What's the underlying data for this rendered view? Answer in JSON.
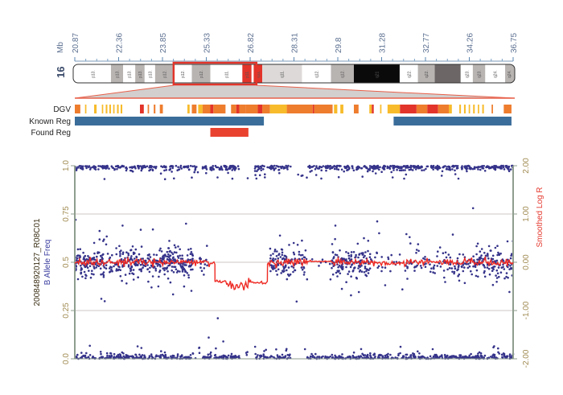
{
  "chart_data": {
    "type": "scatter",
    "title": "",
    "chromosome": "16",
    "mb_unit_label": "Mb",
    "x_range_mb": [
      20.87,
      36.75
    ],
    "top_tick_labels": [
      "20.87",
      "22.36",
      "23.85",
      "25.33",
      "26.82",
      "28.31",
      "29.8",
      "31.28",
      "32.77",
      "34.26",
      "36.75"
    ],
    "sample_id": "200848920127_R08C01",
    "left_axis": {
      "label": "B Allele Freq",
      "range": [
        0,
        1
      ],
      "ticks": [
        "0.0",
        "0.25",
        "0.5",
        "0.75",
        "1.0"
      ],
      "tick_values": [
        0,
        0.25,
        0.5,
        0.75,
        1.0
      ]
    },
    "right_axis": {
      "label": "Smoothed Log R",
      "range": [
        -2,
        2
      ],
      "ticks": [
        "-2.00",
        "-1.00",
        "0.00",
        "1.00",
        "2.00"
      ],
      "tick_values": [
        -2,
        -1,
        0,
        1,
        2
      ]
    },
    "grid": true,
    "ideogram_bands": [
      {
        "label": "p13.",
        "start": 20.87,
        "end": 22.18,
        "stain": "white"
      },
      {
        "label": "p13.",
        "start": 22.18,
        "end": 22.62,
        "stain": "gray"
      },
      {
        "label": "p13.",
        "start": 22.62,
        "end": 23.06,
        "stain": "white"
      },
      {
        "label": "p13.",
        "start": 23.06,
        "end": 23.4,
        "stain": "gray"
      },
      {
        "label": "p13.",
        "start": 23.4,
        "end": 23.78,
        "stain": "white"
      },
      {
        "label": "p12.",
        "start": 23.78,
        "end": 24.45,
        "stain": "gray"
      },
      {
        "label": "p12.",
        "start": 24.45,
        "end": 25.11,
        "stain": "white"
      },
      {
        "label": "p12.",
        "start": 25.11,
        "end": 25.78,
        "stain": "gray"
      },
      {
        "label": "p11.",
        "start": 25.78,
        "end": 26.94,
        "stain": "white"
      },
      {
        "label": "p11.",
        "start": 26.94,
        "end": 27.27,
        "stain": "centromere"
      },
      {
        "label": "q11.",
        "start": 27.35,
        "end": 27.66,
        "stain": "centromere"
      },
      {
        "label": "q11.",
        "start": 27.66,
        "end": 29.1,
        "stain": "light"
      },
      {
        "label": "q12.",
        "start": 29.1,
        "end": 30.15,
        "stain": "white"
      },
      {
        "label": "q12.",
        "start": 30.15,
        "end": 30.98,
        "stain": "gray"
      },
      {
        "label": "q21",
        "start": 30.98,
        "end": 32.64,
        "stain": "black"
      },
      {
        "label": "q22.",
        "start": 32.64,
        "end": 33.3,
        "stain": "white"
      },
      {
        "label": "q22.",
        "start": 33.3,
        "end": 33.91,
        "stain": "gray"
      },
      {
        "label": "",
        "start": 33.91,
        "end": 34.85,
        "stain": "dark"
      },
      {
        "label": "q23.",
        "start": 34.85,
        "end": 35.29,
        "stain": "white"
      },
      {
        "label": "q23.",
        "start": 35.29,
        "end": 35.74,
        "stain": "gray"
      },
      {
        "label": "q24.",
        "start": 35.74,
        "end": 36.46,
        "stain": "white"
      },
      {
        "label": "q24.",
        "start": 36.46,
        "end": 36.75,
        "stain": "gray"
      }
    ],
    "zoom_region_mb": [
      24.45,
      27.45
    ],
    "tracks": {
      "dgv_label": "DGV",
      "known_label": "Known Reg",
      "found_label": "Found Reg",
      "dgv": [
        [
          20.87,
          21.07,
          "o"
        ],
        [
          21.24,
          21.29,
          "y"
        ],
        [
          21.57,
          21.66,
          "y"
        ],
        [
          21.85,
          21.9,
          "y"
        ],
        [
          21.99,
          22.05,
          "y"
        ],
        [
          22.12,
          22.18,
          "y"
        ],
        [
          22.26,
          22.31,
          "y"
        ],
        [
          22.4,
          22.46,
          "y"
        ],
        [
          22.53,
          22.59,
          "y"
        ],
        [
          23.23,
          23.37,
          "r"
        ],
        [
          23.51,
          23.56,
          "o"
        ],
        [
          23.73,
          23.79,
          "o"
        ],
        [
          23.95,
          24.06,
          "o"
        ],
        [
          24.95,
          25.03,
          "y"
        ],
        [
          25.11,
          25.28,
          "o"
        ],
        [
          25.34,
          25.5,
          "y"
        ],
        [
          25.5,
          25.78,
          "o"
        ],
        [
          25.78,
          25.89,
          "r"
        ],
        [
          25.89,
          26.33,
          "o"
        ],
        [
          26.53,
          26.72,
          "o"
        ],
        [
          26.72,
          26.83,
          "r"
        ],
        [
          26.83,
          27.05,
          "o"
        ],
        [
          27.05,
          27.5,
          "o"
        ],
        [
          27.5,
          27.66,
          "r"
        ],
        [
          27.66,
          27.94,
          "o"
        ],
        [
          27.94,
          28.55,
          "y"
        ],
        [
          28.55,
          29.49,
          "o"
        ],
        [
          29.49,
          29.54,
          "r"
        ],
        [
          29.54,
          30.21,
          "o"
        ],
        [
          30.26,
          30.38,
          "y"
        ],
        [
          30.49,
          30.6,
          "y"
        ],
        [
          30.98,
          31.15,
          "o"
        ],
        [
          31.54,
          31.63,
          "y"
        ],
        [
          31.63,
          31.7,
          "r"
        ],
        [
          31.93,
          31.98,
          "y"
        ],
        [
          32.2,
          32.65,
          "y"
        ],
        [
          32.65,
          33.25,
          "r"
        ],
        [
          33.25,
          33.64,
          "o"
        ],
        [
          33.64,
          34.03,
          "r"
        ],
        [
          34.03,
          34.42,
          "o"
        ],
        [
          34.42,
          34.53,
          "y"
        ],
        [
          34.8,
          34.86,
          "y"
        ],
        [
          34.97,
          35.03,
          "y"
        ],
        [
          35.14,
          35.19,
          "y"
        ],
        [
          35.3,
          35.36,
          "y"
        ],
        [
          35.47,
          35.52,
          "y"
        ],
        [
          35.63,
          35.69,
          "y"
        ],
        [
          35.97,
          36.02,
          "o"
        ],
        [
          36.41,
          36.69,
          "o"
        ]
      ],
      "known": [
        [
          20.87,
          27.72
        ],
        [
          32.42,
          36.69
        ]
      ],
      "found": [
        [
          25.78,
          27.16
        ]
      ]
    },
    "colors": {
      "y": "#f7bb2b",
      "o": "#ee7d2e",
      "r": "#e2342a",
      "known": "#3a6d9a",
      "found": "#e9432f",
      "baf": "#35338a",
      "logr": "#ee2a24"
    },
    "baf_het_regions": [
      [
        20.87,
        25.15,
        450
      ],
      [
        25.33,
        25.68,
        15
      ],
      [
        27.92,
        29.23,
        110
      ],
      [
        29.23,
        30.16,
        10
      ],
      [
        30.16,
        31.62,
        150
      ],
      [
        31.62,
        32.87,
        25
      ],
      [
        32.87,
        34.48,
        60
      ],
      [
        34.48,
        36.75,
        170
      ]
    ],
    "baf_homozygous_gaps": [
      [
        25.3,
        25.5
      ],
      [
        26.84,
        27.34
      ],
      [
        28.74,
        29.29
      ]
    ],
    "baf_outliers": [
      [
        25.72,
        0.11
      ],
      [
        26.05,
        0.21
      ],
      [
        26.25,
        0.09
      ],
      [
        27.1,
        0.02
      ],
      [
        22.6,
        0.69
      ],
      [
        23.7,
        0.67
      ],
      [
        35.3,
        0.78
      ],
      [
        21.9,
        0.61
      ],
      [
        33.0,
        0.63
      ],
      [
        20.9,
        0.72
      ],
      [
        28.8,
        0.6
      ],
      [
        30.3,
        0.62
      ],
      [
        24.9,
        0.7
      ]
    ],
    "logr_segments": [
      {
        "start": 20.87,
        "end": 25.95,
        "level": 0.0,
        "noise": 0.05
      },
      {
        "start": 25.95,
        "end": 26.4,
        "level": -0.4,
        "noise": 0.03
      },
      {
        "start": 26.4,
        "end": 27.25,
        "level": -0.5,
        "noise": 0.08
      },
      {
        "start": 27.25,
        "end": 27.85,
        "level": -0.42,
        "noise": 0.02
      },
      {
        "start": 27.85,
        "end": 29.3,
        "level": 0.0,
        "noise": 0.06
      },
      {
        "start": 29.3,
        "end": 30.2,
        "level": 0.02,
        "noise": 0.01
      },
      {
        "start": 30.2,
        "end": 31.7,
        "level": 0.0,
        "noise": 0.05
      },
      {
        "start": 31.7,
        "end": 32.9,
        "level": -0.02,
        "noise": 0.04
      },
      {
        "start": 32.9,
        "end": 36.75,
        "level": 0.0,
        "noise": 0.05
      }
    ]
  }
}
